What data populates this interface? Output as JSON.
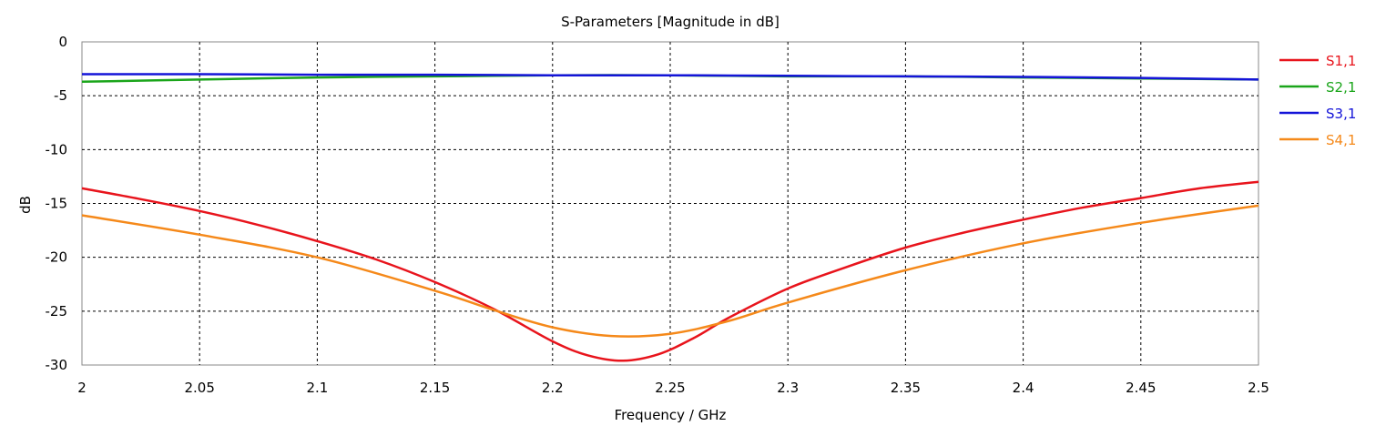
{
  "chart_data": {
    "type": "line",
    "title": "S-Parameters [Magnitude in dB]",
    "xlabel": "Frequency / GHz",
    "ylabel": "dB",
    "xlim": [
      2.0,
      2.5
    ],
    "ylim": [
      -30,
      0
    ],
    "xticks": [
      2.0,
      2.05,
      2.1,
      2.15,
      2.2,
      2.25,
      2.3,
      2.35,
      2.4,
      2.45,
      2.5
    ],
    "xtick_labels": [
      "2",
      "2.05",
      "2.1",
      "2.15",
      "2.2",
      "2.25",
      "2.3",
      "2.35",
      "2.4",
      "2.45",
      "2.5"
    ],
    "yticks": [
      0,
      -5,
      -10,
      -15,
      -20,
      -25,
      -30
    ],
    "ytick_labels": [
      "0",
      "-5",
      "-10",
      "-15",
      "-20",
      "-25",
      "-30"
    ],
    "grid": true,
    "legend_position": "right",
    "series": [
      {
        "name": "S1,1",
        "color": "#e8141c",
        "x": [
          2.0,
          2.025,
          2.05,
          2.075,
          2.1,
          2.125,
          2.15,
          2.175,
          2.2,
          2.215,
          2.23,
          2.245,
          2.26,
          2.275,
          2.3,
          2.325,
          2.35,
          2.375,
          2.4,
          2.425,
          2.45,
          2.475,
          2.5
        ],
        "values": [
          -13.6,
          -14.6,
          -15.7,
          -17.0,
          -18.5,
          -20.2,
          -22.3,
          -24.8,
          -27.8,
          -29.1,
          -29.6,
          -29.0,
          -27.5,
          -25.6,
          -22.9,
          -20.9,
          -19.1,
          -17.7,
          -16.5,
          -15.4,
          -14.5,
          -13.6,
          -13.0
        ]
      },
      {
        "name": "S2,1",
        "color": "#1aa51a",
        "x": [
          2.0,
          2.05,
          2.1,
          2.15,
          2.2,
          2.25,
          2.3,
          2.35,
          2.4,
          2.45,
          2.5
        ],
        "values": [
          -3.7,
          -3.5,
          -3.3,
          -3.2,
          -3.1,
          -3.1,
          -3.2,
          -3.2,
          -3.3,
          -3.4,
          -3.5
        ]
      },
      {
        "name": "S3,1",
        "color": "#1414d8",
        "x": [
          2.0,
          2.05,
          2.1,
          2.15,
          2.2,
          2.25,
          2.3,
          2.35,
          2.4,
          2.45,
          2.5
        ],
        "values": [
          -3.0,
          -3.0,
          -3.05,
          -3.05,
          -3.1,
          -3.1,
          -3.15,
          -3.2,
          -3.25,
          -3.35,
          -3.5
        ]
      },
      {
        "name": "S4,1",
        "color": "#f5891a",
        "x": [
          2.0,
          2.05,
          2.1,
          2.15,
          2.175,
          2.2,
          2.225,
          2.25,
          2.275,
          2.3,
          2.35,
          2.4,
          2.45,
          2.5
        ],
        "values": [
          -16.1,
          -17.9,
          -20.0,
          -23.1,
          -24.9,
          -26.5,
          -27.3,
          -27.1,
          -25.9,
          -24.2,
          -21.2,
          -18.7,
          -16.8,
          -15.2
        ]
      }
    ]
  }
}
